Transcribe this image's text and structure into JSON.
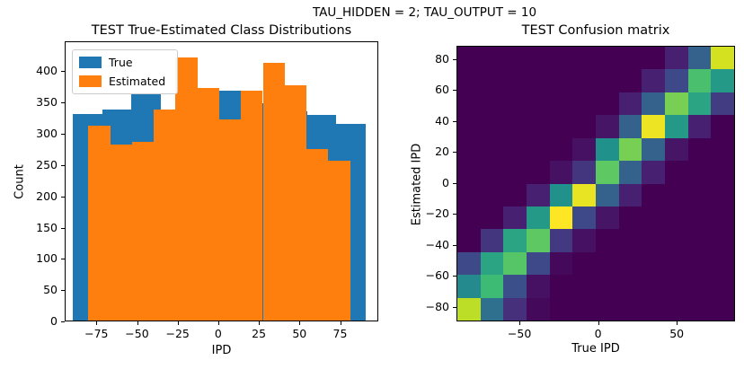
{
  "suptitle": "TAU_HIDDEN = 2; TAU_OUTPUT = 10",
  "colors": {
    "true_series": "#1f77b4",
    "estimated_series": "#ff7f0e",
    "heatmap_background": "#440154",
    "viridis_stops": [
      "#440154",
      "#482878",
      "#3e4989",
      "#31688e",
      "#26828e",
      "#21918c",
      "#35b779",
      "#5ec962",
      "#90d743",
      "#c8e020",
      "#fde725"
    ]
  },
  "left_plot": {
    "title": "TEST True-Estimated Class Distributions",
    "xlabel": "IPD",
    "ylabel": "Count",
    "legend": [
      {
        "label": "True",
        "color": "#1f77b4"
      },
      {
        "label": "Estimated",
        "color": "#ff7f0e"
      }
    ],
    "xticks": {
      "values": [
        -75,
        -50,
        -25,
        0,
        25,
        50,
        75
      ],
      "labels": [
        "−75",
        "−50",
        "−25",
        "0",
        "25",
        "50",
        "75"
      ]
    },
    "yticks": {
      "values": [
        0,
        50,
        100,
        150,
        200,
        250,
        300,
        350,
        400
      ],
      "labels": [
        "0",
        "50",
        "100",
        "150",
        "200",
        "250",
        "300",
        "350",
        "400"
      ]
    },
    "xlim": [
      -94.5,
      98.5
    ],
    "ylim": [
      0,
      448
    ]
  },
  "right_plot": {
    "title": "TEST Confusion matrix",
    "xlabel": "True IPD",
    "ylabel": "Estimated IPD",
    "xticks": {
      "values": [
        -50,
        0,
        50
      ],
      "labels": [
        "−50",
        "0",
        "50"
      ]
    },
    "yticks": {
      "values": [
        80,
        60,
        40,
        20,
        0,
        -20,
        -40,
        -60,
        -80
      ],
      "labels": [
        "80",
        "60",
        "40",
        "20",
        "0",
        "−20",
        "−40",
        "−60",
        "−80"
      ]
    },
    "xlim": [
      -90,
      87
    ],
    "ylim": [
      -89.5,
      88.5
    ]
  },
  "chart_data": [
    {
      "type": "bar",
      "subtype": "overlapping-histogram",
      "title": "TEST True-Estimated Class Distributions",
      "xlabel": "IPD",
      "ylabel": "Count",
      "xlim": [
        -94.5,
        98.5
      ],
      "ylim": [
        0,
        448
      ],
      "legend_position": "upper-left",
      "series": [
        {
          "name": "True",
          "color": "#1f77b4",
          "bin_start": -90,
          "bin_width": 18,
          "counts": [
            333,
            340,
            365,
            338,
            350,
            371,
            350,
            338,
            332,
            318
          ]
        },
        {
          "name": "Estimated",
          "color": "#ff7f0e",
          "bin_start": -80.5,
          "bin_width": 13.42,
          "counts": [
            315,
            285,
            288,
            340,
            424,
            375,
            325,
            371,
            415,
            379,
            277,
            258
          ]
        }
      ]
    },
    {
      "type": "heatmap",
      "title": "TEST Confusion matrix",
      "xlabel": "True IPD",
      "ylabel": "Estimated IPD",
      "colormap": "viridis",
      "value_scale": [
        0,
        100
      ],
      "x_range": [
        -90,
        87
      ],
      "y_range": [
        -89.5,
        88.5
      ],
      "rows_order": "Estimated IPD from high (top) to low (bottom)",
      "cols_order": "True IPD from low (left) to high (right)",
      "matrix": [
        [
          0,
          0,
          0,
          0,
          0,
          0,
          0,
          0,
          0,
          8,
          28,
          92
        ],
        [
          0,
          0,
          0,
          0,
          0,
          0,
          0,
          0,
          8,
          20,
          65,
          52
        ],
        [
          0,
          0,
          0,
          0,
          0,
          0,
          0,
          8,
          28,
          75,
          55,
          16
        ],
        [
          0,
          0,
          0,
          0,
          0,
          0,
          5,
          28,
          97,
          52,
          8,
          0
        ],
        [
          0,
          0,
          0,
          0,
          0,
          4,
          50,
          75,
          28,
          5,
          0,
          0
        ],
        [
          0,
          0,
          0,
          0,
          4,
          14,
          70,
          28,
          8,
          0,
          0,
          0
        ],
        [
          0,
          0,
          0,
          8,
          50,
          96,
          28,
          8,
          0,
          0,
          0,
          0
        ],
        [
          0,
          0,
          8,
          52,
          100,
          20,
          5,
          0,
          0,
          0,
          0,
          0
        ],
        [
          0,
          14,
          55,
          70,
          15,
          4,
          0,
          0,
          0,
          0,
          0,
          0
        ],
        [
          20,
          55,
          68,
          20,
          2,
          0,
          0,
          0,
          0,
          0,
          0,
          0
        ],
        [
          45,
          62,
          22,
          4,
          0,
          0,
          0,
          0,
          0,
          0,
          0,
          0
        ],
        [
          88,
          33,
          12,
          2,
          0,
          0,
          0,
          0,
          0,
          0,
          0,
          0
        ]
      ]
    }
  ]
}
